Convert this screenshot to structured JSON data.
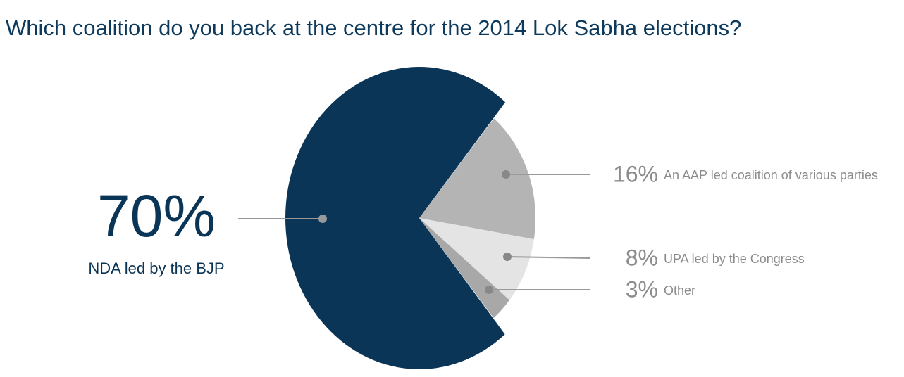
{
  "chart_data": {
    "type": "pie",
    "title": "Which coalition do you back at the centre for the 2014 Lok Sabha elections?",
    "categories": [
      "NDA led by the BJP",
      "An AAP led coalition of various parties",
      "UPA led by the Congress",
      "Other"
    ],
    "values": [
      70,
      16,
      8,
      3
    ],
    "value_labels": [
      "70%",
      "16%",
      "8%",
      "3%"
    ],
    "colors": [
      "#0b3556",
      "#b4b4b4",
      "#e4e4e4",
      "#a8a8a8"
    ]
  }
}
